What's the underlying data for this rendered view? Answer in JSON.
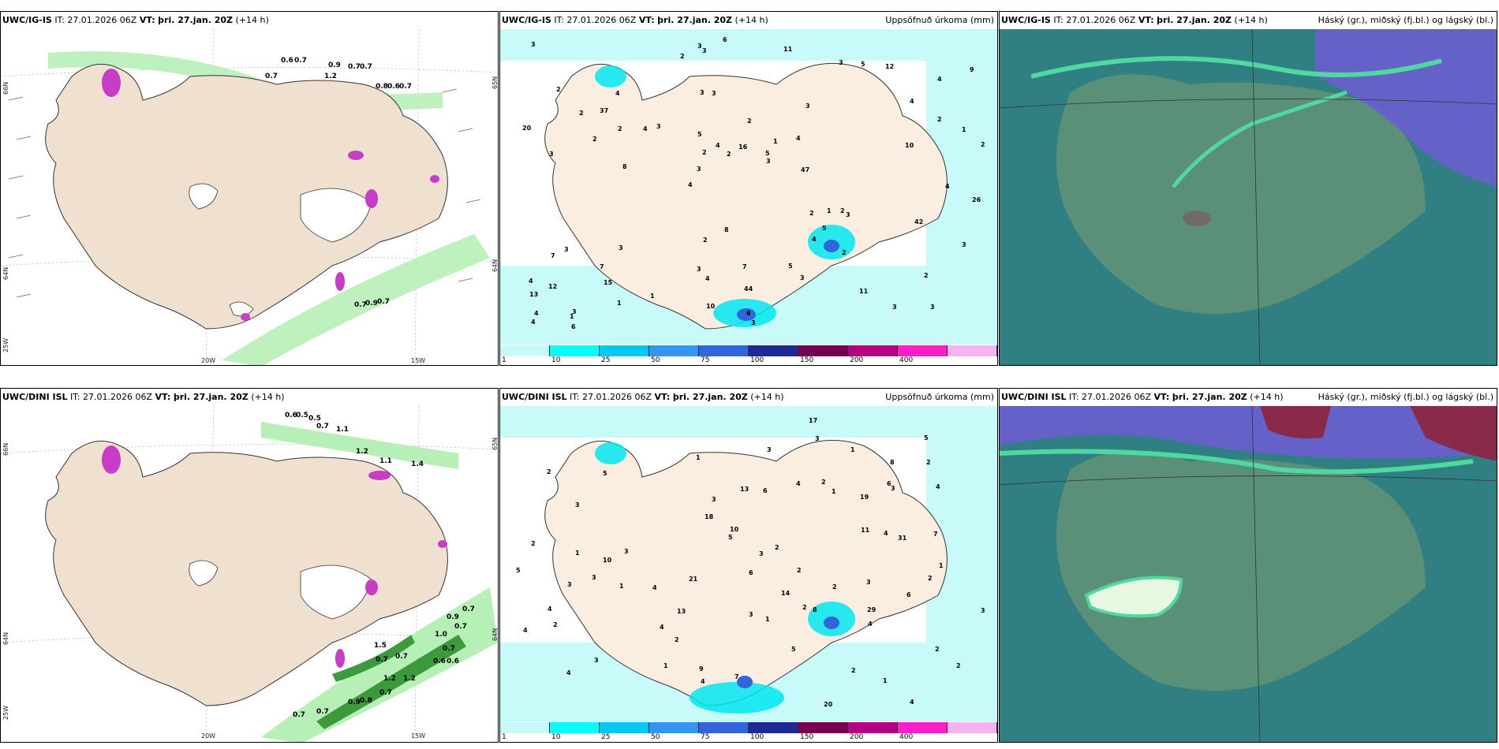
{
  "panels": [
    {
      "id": "p1",
      "model": "UWC/IG-IS",
      "it": "IT: 27.01.2026 06Z",
      "vt_label": "VT:",
      "vt": "þri. 27.jan. 20Z",
      "lead": "(+14 h)",
      "title_right": "",
      "lat_labels": [
        "66N",
        "64N",
        "25W"
      ],
      "lon_labels": [
        "20W",
        "15W"
      ],
      "lat_right": [
        "65N",
        "64N"
      ],
      "numbers": [
        "0.6",
        "0.7",
        "0.7",
        "0.9",
        "0.7",
        "0.7",
        "1.2",
        "0.8",
        "0.6",
        "0.7",
        "0.7",
        "0.9",
        "0.7"
      ]
    },
    {
      "id": "p2",
      "model": "UWC/IG-IS",
      "it": "IT: 27.01.2026 06Z",
      "vt_label": "VT:",
      "vt": "þri. 27.jan. 20Z",
      "lead": "(+14 h)",
      "title_right": "Uppsöfnuð úrkoma (mm)",
      "numbers": [
        "3",
        "3",
        "4",
        "4",
        "3",
        "3",
        "3",
        "2",
        "3",
        "3",
        "13",
        "15",
        "3",
        "1",
        "3",
        "2",
        "3",
        "2",
        "2",
        "2",
        "3",
        "3",
        "2",
        "4",
        "3",
        "3",
        "3",
        "2",
        "2",
        "3",
        "4",
        "2",
        "4",
        "1",
        "1",
        "5",
        "4",
        "4",
        "3",
        "7",
        "4",
        "9",
        "5",
        "3",
        "7",
        "6",
        "4",
        "7",
        "12",
        "6",
        "8",
        "20",
        "37",
        "5",
        "1",
        "11",
        "2",
        "4",
        "3",
        "2",
        "1",
        "1",
        "2",
        "4",
        "3",
        "2",
        "26",
        "5",
        "44",
        "16",
        "12",
        "47",
        "42",
        "10",
        "10",
        "8",
        "11",
        "6",
        "5",
        "3",
        "4",
        "4",
        "2",
        "2"
      ]
    },
    {
      "id": "p3",
      "model": "UWC/IG-IS",
      "it": "IT: 27.01.2026 06Z",
      "vt_label": "VT:",
      "vt": "þri. 27.jan. 20Z",
      "lead": "(+14 h)",
      "title_right": "Háský (gr.), miðský (fj.bl.) og lágský (bl.)"
    },
    {
      "id": "p4",
      "model": "UWC/DINI ISL",
      "it": "IT: 27.01.2026 06Z",
      "vt_label": "VT:",
      "vt": "þri. 27.jan. 20Z",
      "lead": "(+14 h)",
      "title_right": "",
      "lat_labels": [
        "66N",
        "64N",
        "25W"
      ],
      "lon_labels": [
        "20W",
        "15W"
      ],
      "lat_right": [
        "65N",
        "64N"
      ],
      "numbers": [
        "0.6",
        "0.5",
        "0.5",
        "0.7",
        "1.1",
        "1.2",
        "1.1",
        "1.4",
        "0.7",
        "0.9",
        "0.7",
        "1.0",
        "1.5",
        "0.7",
        "0.7",
        "0.6",
        "0.6",
        "1.2",
        "1.2",
        "0.7",
        "0.9",
        "0.8",
        "0.7",
        "0.7",
        "0.7"
      ]
    },
    {
      "id": "p5",
      "model": "UWC/DINI ISL",
      "it": "IT: 27.01.2026 06Z",
      "vt_label": "VT:",
      "vt": "þri. 27.jan. 20Z",
      "lead": "(+14 h)",
      "title_right": "Uppsöfnuð úrkoma (mm)",
      "numbers": [
        "4",
        "3",
        "2",
        "2",
        "2",
        "3",
        "3",
        "4",
        "19",
        "13",
        "1",
        "1",
        "2",
        "1",
        "2",
        "2",
        "3",
        "3",
        "2",
        "4",
        "5",
        "6",
        "4",
        "3",
        "1",
        "1",
        "1",
        "6",
        "5",
        "2",
        "8",
        "3",
        "4",
        "2",
        "3",
        "6",
        "2",
        "2",
        "8",
        "20",
        "13",
        "1",
        "1",
        "17",
        "21",
        "10",
        "4",
        "3",
        "4",
        "3",
        "2",
        "7",
        "29",
        "31",
        "18",
        "5",
        "4",
        "10",
        "14",
        "11",
        "9",
        "6",
        "5",
        "3",
        "4",
        "4",
        "3",
        "2",
        "1",
        "3",
        "4",
        "7",
        "5",
        "2"
      ]
    },
    {
      "id": "p6",
      "model": "UWC/DINI ISL",
      "it": "IT: 27.01.2026 06Z",
      "vt_label": "VT:",
      "vt": "þri. 27.jan. 20Z",
      "lead": "(+14 h)",
      "title_right": "Háský (gr.), miðský (fj.bl.) og lágský (bl.)"
    }
  ],
  "colorbar": {
    "ticks": [
      "1",
      "10",
      "25",
      "50",
      "75",
      "100",
      "150",
      "200",
      "400"
    ],
    "colors": [
      "#c8fafa",
      "#00ffff",
      "#00c8f0",
      "#3296f0",
      "#3264dc",
      "#1e2896",
      "#780050",
      "#b40082",
      "#ff1ec8",
      "#f5b4f0"
    ]
  },
  "colors": {
    "land": "#f0e0d0",
    "wetland": "#b7f0b7",
    "green_dark": "#3c9a3c",
    "magenta": "#c83cc8",
    "cloud_base": "#2f7f83",
    "cloud_mid": "#5a6fd0",
    "cloud_high": "#4fd9a0",
    "cloud_low": "#1f5f6f"
  }
}
